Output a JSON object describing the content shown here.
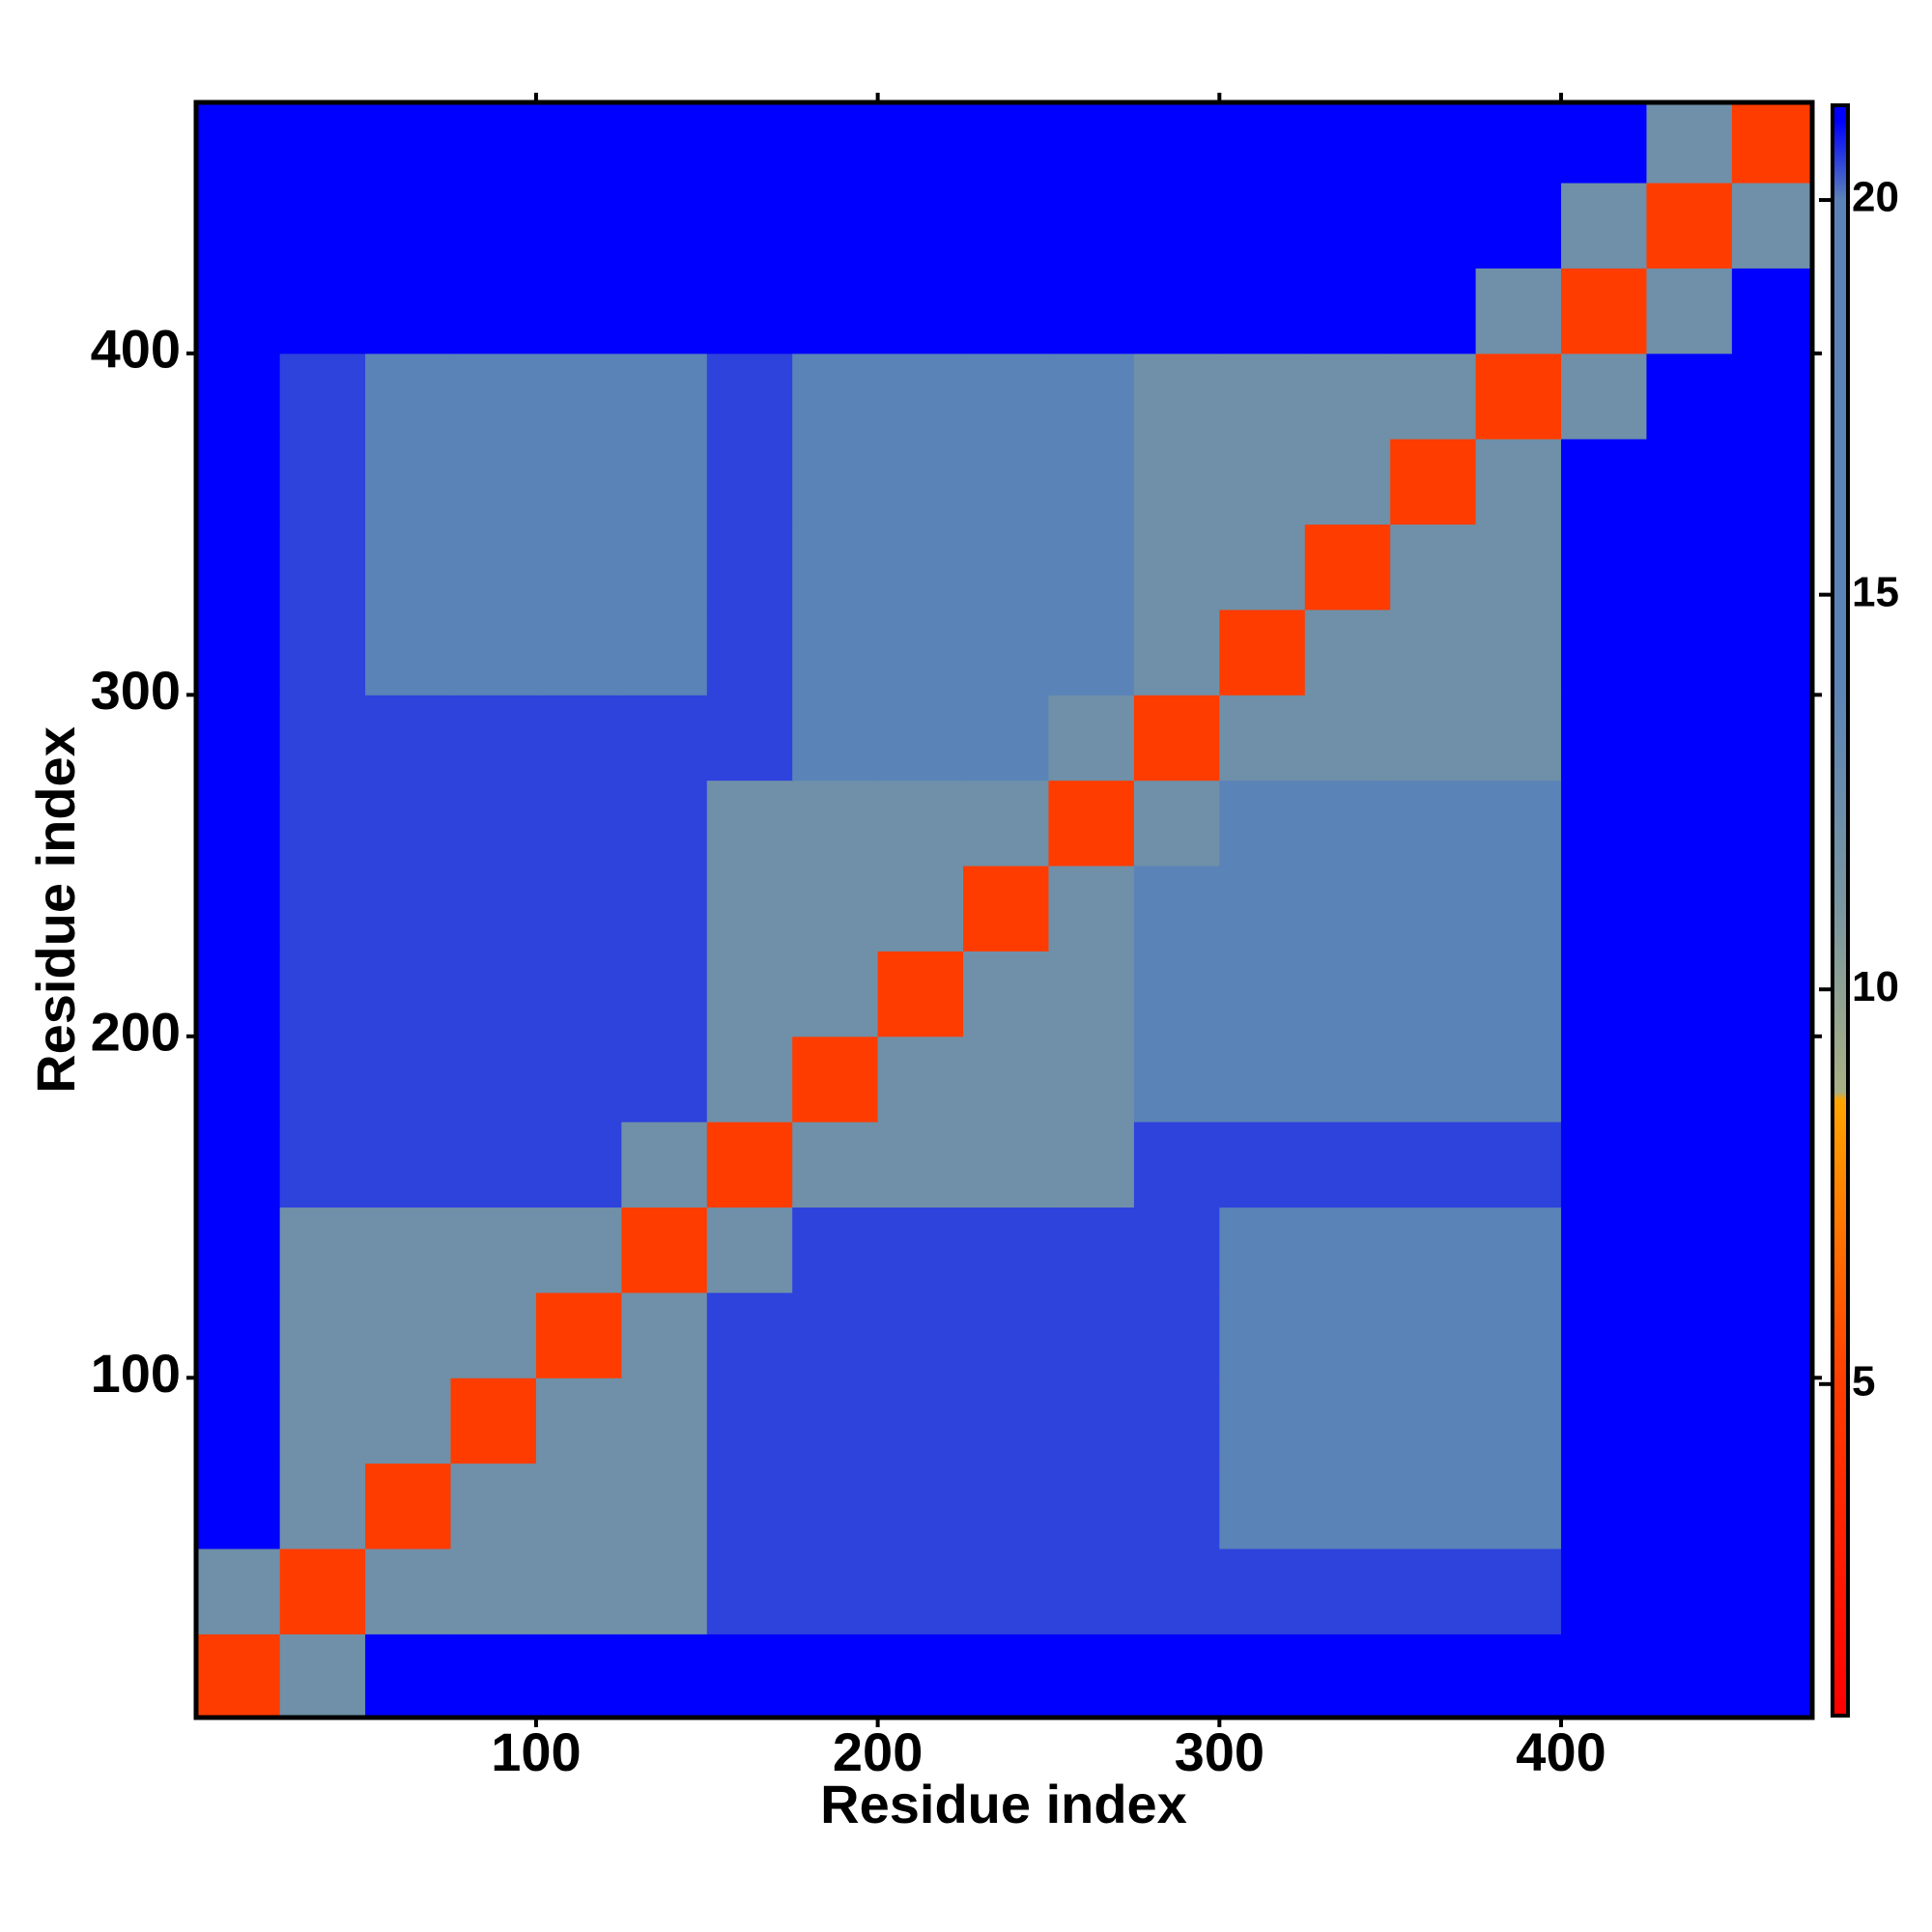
{
  "chart_data": {
    "type": "heatmap",
    "xlabel": "Residue index",
    "ylabel": "Residue index",
    "xlim": [
      0.5,
      473.5
    ],
    "ylim": [
      0.5,
      473.5
    ],
    "xticks": [
      100,
      200,
      300,
      400
    ],
    "yticks": [
      100,
      200,
      300,
      400
    ],
    "bins": [
      0,
      25,
      50,
      75,
      100,
      125,
      150,
      175,
      200,
      225,
      250,
      275,
      300,
      325,
      350,
      375,
      400,
      425,
      450,
      475
    ],
    "z": [
      [
        5,
        12,
        21,
        21,
        21,
        21,
        21,
        21,
        21,
        21,
        21,
        21,
        21,
        21,
        21,
        21,
        21,
        21,
        21
      ],
      [
        12,
        5,
        12,
        12,
        12,
        12,
        20.5,
        20.5,
        20.5,
        20.5,
        20.5,
        20.5,
        20.5,
        20.5,
        20.5,
        20.5,
        21,
        21,
        21
      ],
      [
        21,
        12,
        5,
        12,
        12,
        12,
        20.5,
        20.5,
        20.5,
        20.5,
        20.5,
        20.5,
        15,
        15,
        15,
        15,
        21,
        21,
        21
      ],
      [
        21,
        12,
        12,
        5,
        12,
        12,
        20.5,
        20.5,
        20.5,
        20.5,
        20.5,
        20.5,
        15,
        15,
        15,
        15,
        21,
        21,
        21
      ],
      [
        21,
        12,
        12,
        12,
        5,
        12,
        20.5,
        20.5,
        20.5,
        20.5,
        20.5,
        20.5,
        15,
        15,
        15,
        15,
        21,
        21,
        21
      ],
      [
        21,
        12,
        12,
        12,
        12,
        5,
        12,
        20.5,
        20.5,
        20.5,
        20.5,
        20.5,
        15,
        15,
        15,
        15,
        21,
        21,
        21
      ],
      [
        21,
        20.5,
        20.5,
        20.5,
        20.5,
        12,
        5,
        12,
        12,
        12,
        12,
        20.5,
        20.5,
        20.5,
        20.5,
        20.5,
        21,
        21,
        21
      ],
      [
        21,
        20.5,
        20.5,
        20.5,
        20.5,
        20.5,
        12,
        5,
        12,
        12,
        12,
        15,
        15,
        15,
        15,
        15,
        21,
        21,
        21
      ],
      [
        21,
        20.5,
        20.5,
        20.5,
        20.5,
        20.5,
        12,
        12,
        5,
        12,
        12,
        15,
        15,
        15,
        15,
        15,
        21,
        21,
        21
      ],
      [
        21,
        20.5,
        20.5,
        20.5,
        20.5,
        20.5,
        12,
        12,
        12,
        5,
        12,
        15,
        15,
        15,
        15,
        15,
        21,
        21,
        21
      ],
      [
        21,
        20.5,
        20.5,
        20.5,
        20.5,
        20.5,
        12,
        12,
        12,
        12,
        5,
        12,
        15,
        15,
        15,
        15,
        21,
        21,
        21
      ],
      [
        21,
        20.5,
        20.5,
        20.5,
        20.5,
        20.5,
        20.5,
        15,
        15,
        15,
        12,
        5,
        12,
        12,
        12,
        12,
        21,
        21,
        21
      ],
      [
        21,
        20.5,
        15,
        15,
        15,
        15,
        20.5,
        15,
        15,
        15,
        15,
        12,
        5,
        12,
        12,
        12,
        21,
        21,
        21
      ],
      [
        21,
        20.5,
        15,
        15,
        15,
        15,
        20.5,
        15,
        15,
        15,
        15,
        12,
        12,
        5,
        12,
        12,
        21,
        21,
        21
      ],
      [
        21,
        20.5,
        15,
        15,
        15,
        15,
        20.5,
        15,
        15,
        15,
        15,
        12,
        12,
        12,
        5,
        12,
        21,
        21,
        21
      ],
      [
        21,
        20.5,
        15,
        15,
        15,
        15,
        20.5,
        15,
        15,
        15,
        15,
        12,
        12,
        12,
        12,
        5,
        12,
        21,
        21
      ],
      [
        21,
        21,
        21,
        21,
        21,
        21,
        21,
        21,
        21,
        21,
        21,
        21,
        21,
        21,
        21,
        12,
        5,
        12,
        21
      ],
      [
        21,
        21,
        21,
        21,
        21,
        21,
        21,
        21,
        21,
        21,
        21,
        21,
        21,
        21,
        21,
        21,
        12,
        5,
        12
      ],
      [
        21,
        21,
        21,
        21,
        21,
        21,
        21,
        21,
        21,
        21,
        21,
        21,
        21,
        21,
        21,
        21,
        21,
        12,
        5
      ]
    ],
    "clim": [
      0.8,
      21.2
    ],
    "cticks": [
      5,
      10,
      15,
      20
    ],
    "colorscale": [
      [
        0.8,
        "#ff0000"
      ],
      [
        5,
        "#ff3c00"
      ],
      [
        8.6,
        "#ffa500"
      ],
      [
        8.7,
        "#a8b084"
      ],
      [
        11,
        "#7a96a0"
      ],
      [
        14,
        "#5a83b8"
      ],
      [
        20,
        "#5b83b8"
      ],
      [
        21,
        "#0000ff"
      ]
    ]
  }
}
